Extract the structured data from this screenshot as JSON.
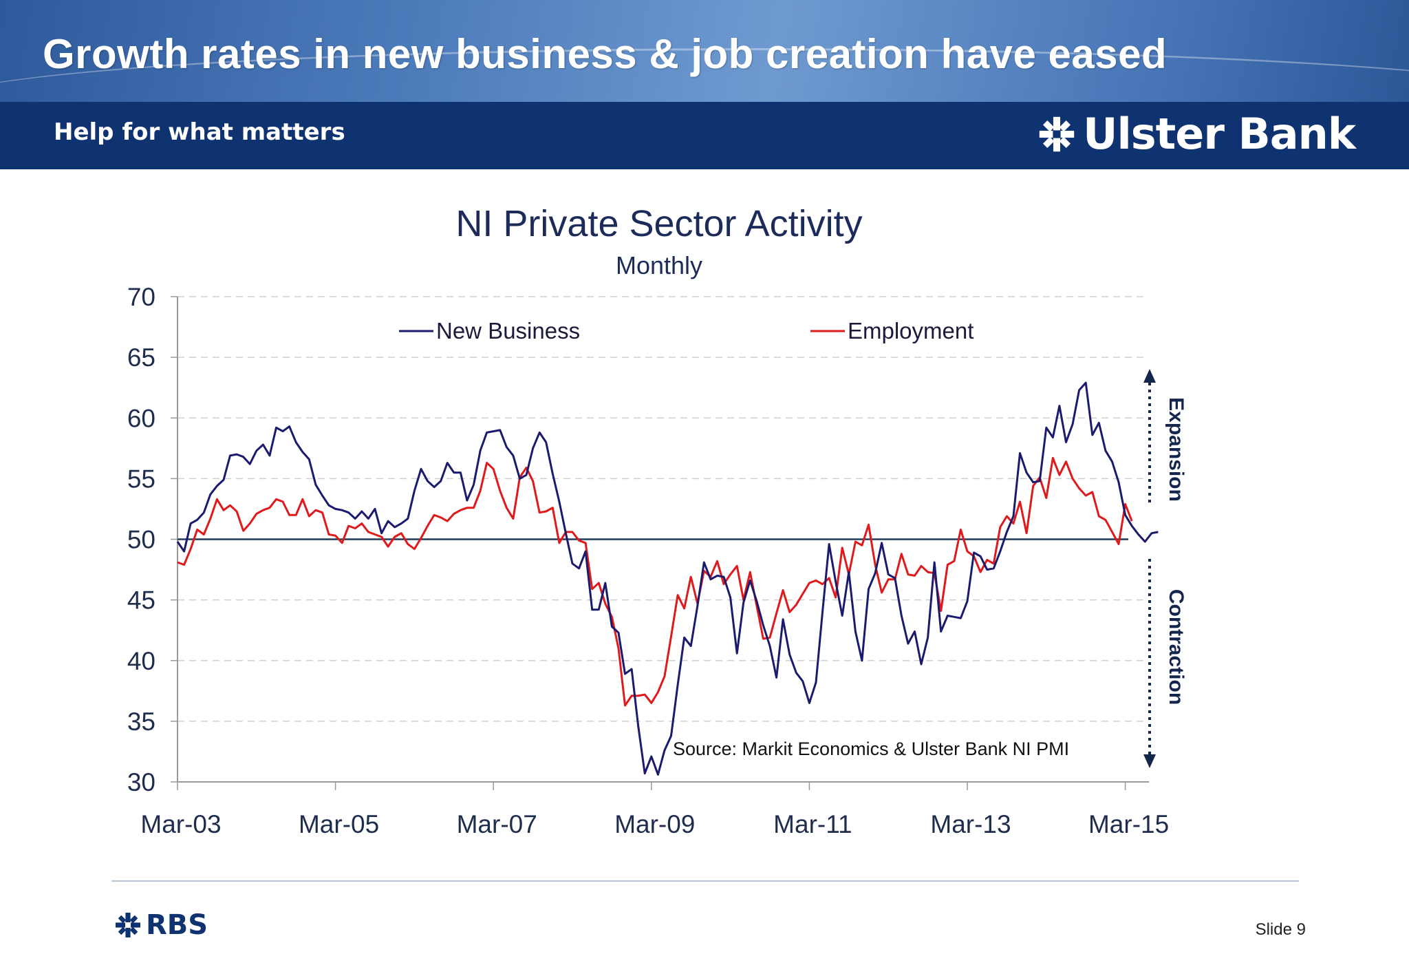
{
  "slide": {
    "title": "Growth rates in new business & job creation have eased",
    "tagline": "Help for what matters",
    "brand_name": "Ulster Bank",
    "footer_logo": "RBS",
    "slide_label": "Slide",
    "slide_number": "9"
  },
  "icons": {
    "brand_logo": "ulster-bank-daisy-icon",
    "footer_logo": "rbs-daisy-icon"
  },
  "colors": {
    "header_band": "#4a78b8",
    "brand_bar": "#0f3270",
    "axis_text": "#1f2d4d",
    "title_text": "#1c2b5a"
  },
  "chart_data": {
    "type": "line",
    "title": "NI Private Sector Activity",
    "subtitle": "Monthly",
    "xlabel": "",
    "ylabel": "",
    "ylim": [
      30,
      70
    ],
    "yticks": [
      30,
      35,
      40,
      45,
      50,
      55,
      60,
      65,
      70
    ],
    "x_tick_labels": [
      "Mar-03",
      "Mar-05",
      "Mar-07",
      "Mar-09",
      "Mar-11",
      "Mar-13",
      "Mar-15"
    ],
    "x_start": "Mar-03",
    "x_end": "Apr-15",
    "grid": "horizontal dashed",
    "legend_position": "top",
    "reference_line": 50,
    "source_note": "Source: Markit Economics & Ulster Bank NI PMI",
    "annotations": {
      "expansion": "Expansion",
      "contraction": "Contraction"
    },
    "series": [
      {
        "name": "New Business",
        "color": "#1a1a6e",
        "values": [
          49.8,
          49.0,
          51.3,
          51.6,
          52.2,
          53.7,
          54.4,
          54.9,
          56.9,
          57.0,
          56.8,
          56.2,
          57.3,
          57.8,
          56.9,
          59.2,
          58.9,
          59.3,
          58.0,
          57.2,
          56.6,
          54.5,
          53.6,
          52.8,
          52.5,
          52.4,
          52.2,
          51.7,
          52.3,
          51.7,
          52.5,
          50.5,
          51.5,
          51.0,
          51.3,
          51.7,
          54.0,
          55.8,
          54.8,
          54.3,
          54.8,
          56.3,
          55.5,
          55.5,
          53.2,
          54.5,
          57.3,
          58.8,
          58.9,
          59.0,
          57.6,
          56.9,
          55.0,
          55.3,
          57.5,
          58.8,
          58.0,
          55.4,
          53.1,
          50.5,
          48.0,
          47.6,
          49.0,
          44.2,
          44.2,
          46.4,
          42.8,
          42.3,
          38.9,
          39.3,
          34.6,
          30.7,
          32.1,
          30.6,
          32.6,
          33.8,
          38.0,
          41.9,
          41.2,
          44.5,
          48.1,
          46.7,
          47.0,
          46.9,
          45.2,
          40.6,
          44.8,
          46.6,
          44.9,
          42.9,
          41.2,
          38.6,
          43.4,
          40.5,
          39.0,
          38.3,
          36.5,
          38.2,
          44.0,
          49.6,
          46.5,
          43.7,
          47.3,
          42.4,
          40.0,
          45.9,
          47.2,
          49.7,
          47.1,
          46.8,
          43.7,
          41.4,
          42.4,
          39.7,
          41.9,
          48.1,
          42.4,
          43.7,
          43.6,
          43.5,
          44.9,
          48.9,
          48.6,
          47.5,
          47.6,
          49.0,
          50.6,
          51.9,
          57.1,
          55.5,
          54.7,
          54.8,
          59.2,
          58.4,
          61.0,
          58.0,
          59.5,
          62.3,
          62.9,
          58.6,
          59.6,
          57.3,
          56.4,
          54.7,
          52.0,
          51.1,
          50.4,
          49.8,
          50.5,
          50.6
        ]
      },
      {
        "name": "Employment",
        "color": "#e0191b",
        "values": [
          48.1,
          47.9,
          49.2,
          50.8,
          50.4,
          51.7,
          53.3,
          52.4,
          52.8,
          52.3,
          50.7,
          51.3,
          52.1,
          52.4,
          52.6,
          53.3,
          53.1,
          52.0,
          52.0,
          53.3,
          51.9,
          52.4,
          52.2,
          50.4,
          50.3,
          49.7,
          51.1,
          50.9,
          51.3,
          50.6,
          50.4,
          50.2,
          49.4,
          50.2,
          50.5,
          49.6,
          49.2,
          50.1,
          51.1,
          52.0,
          51.8,
          51.5,
          52.1,
          52.4,
          52.6,
          52.6,
          54.0,
          56.3,
          55.8,
          54.0,
          52.6,
          51.7,
          55.1,
          55.9,
          54.8,
          52.2,
          52.3,
          52.6,
          49.7,
          50.6,
          50.6,
          49.9,
          49.7,
          45.9,
          46.4,
          44.7,
          43.6,
          41.0,
          36.3,
          37.1,
          37.1,
          37.2,
          36.5,
          37.4,
          38.7,
          42.0,
          45.4,
          44.3,
          46.9,
          44.7,
          47.4,
          46.9,
          48.2,
          46.3,
          47.1,
          47.8,
          45.0,
          47.3,
          44.5,
          41.8,
          41.9,
          43.9,
          45.8,
          44.0,
          44.6,
          45.5,
          46.4,
          46.6,
          46.3,
          46.8,
          45.2,
          49.3,
          47.1,
          49.8,
          49.5,
          51.2,
          47.9,
          45.6,
          46.7,
          46.7,
          48.8,
          47.1,
          47.0,
          47.8,
          47.3,
          47.2,
          44.1,
          47.9,
          48.2,
          50.8,
          49.0,
          48.6,
          47.3,
          48.3,
          48.0,
          51.0,
          51.9,
          51.3,
          53.1,
          50.5,
          54.4,
          55.1,
          53.4,
          56.7,
          55.3,
          56.4,
          55.0,
          54.2,
          53.6,
          53.9,
          51.9,
          51.6,
          50.6,
          49.6,
          52.9,
          51.5
        ]
      }
    ]
  }
}
